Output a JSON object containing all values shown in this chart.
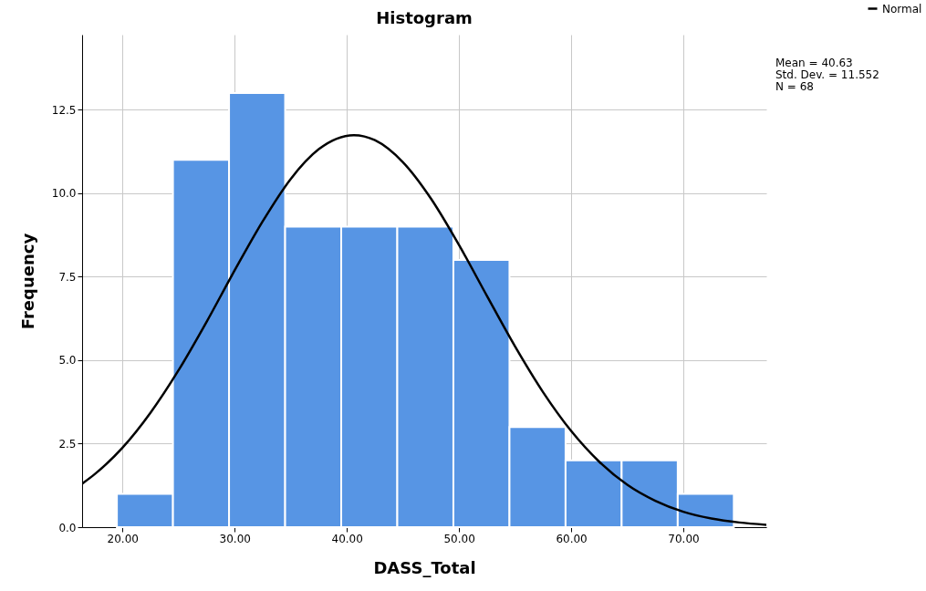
{
  "chart_data": {
    "type": "histogram",
    "title": "Histogram",
    "xlabel": "DASS_Total",
    "ylabel": "Frequency",
    "bins": [
      19.5,
      24.5,
      29.5,
      34.5,
      39.5,
      44.5,
      49.5,
      54.5,
      59.5,
      64.5,
      69.5,
      74.5
    ],
    "values": [
      1,
      11,
      13,
      9,
      9,
      9,
      8,
      3,
      2,
      2,
      1
    ],
    "color": "#5795e4",
    "series": [
      {
        "name": "Normal",
        "type": "line",
        "color": "#000000",
        "x": [
          16.4,
          17.5,
          20,
          22.5,
          25,
          27.5,
          30,
          32.5,
          35,
          37.5,
          40.63,
          42.5,
          45,
          47.5,
          50,
          52.5,
          55,
          57.5,
          60,
          62.5,
          65,
          67.5,
          70,
          72.5,
          75,
          77.4
        ],
        "values": [
          1.3,
          1.58,
          2.38,
          3.43,
          4.7,
          6.15,
          7.69,
          9.16,
          10.43,
          11.32,
          11.74,
          11.59,
          10.93,
          9.84,
          8.45,
          6.92,
          5.41,
          4.04,
          2.88,
          1.96,
          1.27,
          0.79,
          0.46,
          0.26,
          0.14,
          0.07
        ]
      }
    ],
    "xlim": [
      16.4,
      77.4
    ],
    "xticks": [
      {
        "value": 20,
        "label": "20.00"
      },
      {
        "value": 30,
        "label": "30.00"
      },
      {
        "value": 40,
        "label": "40.00"
      },
      {
        "value": 50,
        "label": "50.00"
      },
      {
        "value": 60,
        "label": "60.00"
      },
      {
        "value": 70,
        "label": "70.00"
      }
    ],
    "ylim": [
      0,
      14.75
    ],
    "yticks": [
      {
        "value": 0,
        "label": "0.0"
      },
      {
        "value": 2.5,
        "label": "2.5"
      },
      {
        "value": 5,
        "label": "5.0"
      },
      {
        "value": 7.5,
        "label": "7.5"
      },
      {
        "value": 10,
        "label": "10.0"
      },
      {
        "value": 12.5,
        "label": "12.5"
      }
    ],
    "grid": true,
    "legend": "top right",
    "annotations": [
      "Mean = 40.63",
      "Std. Dev. = 11.552",
      "N = 68"
    ]
  }
}
